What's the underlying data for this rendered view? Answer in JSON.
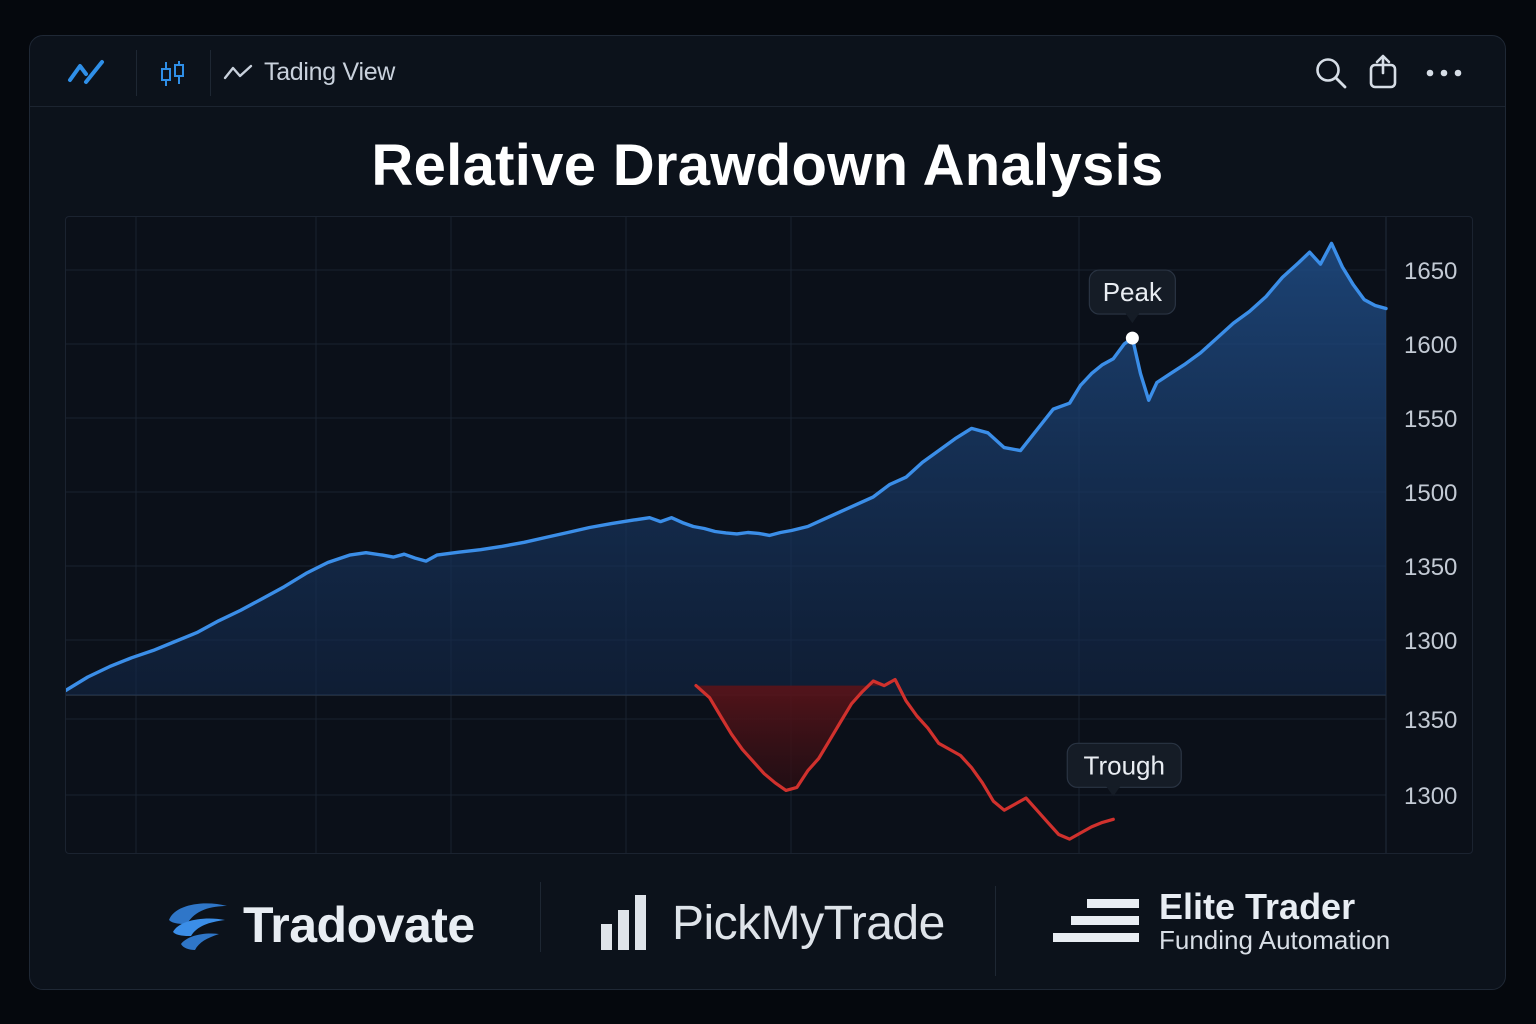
{
  "app": {
    "title": "Tading View"
  },
  "chart_data": {
    "type": "line",
    "title": "Relative Drawdown Analysis",
    "upper_panel": {
      "yticks": [
        1650,
        1600,
        1550,
        1500,
        1350,
        1300
      ],
      "series": [
        {
          "color": "#3b8ee8",
          "points": [
            [
              0,
              1266
            ],
            [
              8,
              1275
            ],
            [
              16,
              1282
            ],
            [
              24,
              1288
            ],
            [
              32,
              1293
            ],
            [
              40,
              1299
            ],
            [
              48,
              1305
            ],
            [
              56,
              1313
            ],
            [
              64,
              1320
            ],
            [
              72,
              1328
            ],
            [
              80,
              1336
            ],
            [
              88,
              1345
            ],
            [
              96,
              1357
            ],
            [
              104,
              1372
            ],
            [
              110,
              1377
            ],
            [
              116,
              1372
            ],
            [
              120,
              1368
            ],
            [
              124,
              1374
            ],
            [
              128,
              1366
            ],
            [
              132,
              1360
            ],
            [
              136,
              1372
            ],
            [
              144,
              1378
            ],
            [
              152,
              1383
            ],
            [
              160,
              1390
            ],
            [
              168,
              1398
            ],
            [
              176,
              1408
            ],
            [
              184,
              1418
            ],
            [
              192,
              1428
            ],
            [
              200,
              1436
            ],
            [
              208,
              1443
            ],
            [
              214,
              1448
            ],
            [
              218,
              1440
            ],
            [
              222,
              1448
            ],
            [
              226,
              1438
            ],
            [
              230,
              1430
            ],
            [
              234,
              1426
            ],
            [
              238,
              1420
            ],
            [
              242,
              1417
            ],
            [
              246,
              1415
            ],
            [
              250,
              1418
            ],
            [
              254,
              1416
            ],
            [
              258,
              1412
            ],
            [
              262,
              1418
            ],
            [
              266,
              1422
            ],
            [
              272,
              1430
            ],
            [
              278,
              1445
            ],
            [
              284,
              1460
            ],
            [
              290,
              1475
            ],
            [
              296,
              1490
            ],
            [
              302,
              1505
            ],
            [
              308,
              1510
            ],
            [
              314,
              1520
            ],
            [
              320,
              1528
            ],
            [
              326,
              1536
            ],
            [
              332,
              1543
            ],
            [
              338,
              1540
            ],
            [
              344,
              1530
            ],
            [
              350,
              1528
            ],
            [
              356,
              1542
            ],
            [
              362,
              1556
            ],
            [
              368,
              1560
            ],
            [
              372,
              1572
            ],
            [
              376,
              1580
            ],
            [
              380,
              1586
            ],
            [
              384,
              1590
            ],
            [
              388,
              1600
            ],
            [
              391,
              1604
            ],
            [
              394,
              1580
            ],
            [
              397,
              1562
            ],
            [
              400,
              1574
            ],
            [
              405,
              1580
            ],
            [
              410,
              1586
            ],
            [
              416,
              1594
            ],
            [
              422,
              1604
            ],
            [
              428,
              1614
            ],
            [
              434,
              1622
            ],
            [
              440,
              1632
            ],
            [
              446,
              1645
            ],
            [
              452,
              1655
            ],
            [
              456,
              1662
            ],
            [
              460,
              1654
            ],
            [
              464,
              1668
            ],
            [
              468,
              1652
            ],
            [
              472,
              1640
            ],
            [
              476,
              1630
            ],
            [
              480,
              1626
            ],
            [
              484,
              1624
            ]
          ]
        }
      ]
    },
    "lower_panel": {
      "yticks": [
        1350,
        1300
      ],
      "series": [
        {
          "color": "#d0312d",
          "points": [
            [
              231,
              1372
            ],
            [
              236,
              1364
            ],
            [
              240,
              1352
            ],
            [
              244,
              1340
            ],
            [
              248,
              1330
            ],
            [
              252,
              1322
            ],
            [
              256,
              1314
            ],
            [
              260,
              1308
            ],
            [
              264,
              1303
            ],
            [
              268,
              1305
            ],
            [
              272,
              1316
            ],
            [
              276,
              1324
            ],
            [
              280,
              1336
            ],
            [
              284,
              1348
            ],
            [
              288,
              1360
            ],
            [
              292,
              1368
            ],
            [
              296,
              1375
            ],
            [
              300,
              1372
            ],
            [
              304,
              1376
            ],
            [
              308,
              1362
            ],
            [
              312,
              1352
            ],
            [
              316,
              1344
            ],
            [
              320,
              1334
            ],
            [
              324,
              1330
            ],
            [
              328,
              1326
            ],
            [
              332,
              1318
            ],
            [
              336,
              1308
            ],
            [
              340,
              1296
            ],
            [
              344,
              1290
            ],
            [
              348,
              1294
            ],
            [
              352,
              1298
            ],
            [
              356,
              1290
            ],
            [
              360,
              1282
            ],
            [
              364,
              1274
            ],
            [
              368,
              1271
            ],
            [
              372,
              1275
            ],
            [
              376,
              1279
            ],
            [
              380,
              1282
            ],
            [
              384,
              1284
            ]
          ]
        }
      ]
    },
    "annotations": [
      {
        "label": "Peak",
        "x": 391,
        "y": 1604,
        "panel": "upper"
      },
      {
        "label": "Trough",
        "x": 384,
        "y": 1284,
        "panel": "lower"
      }
    ]
  },
  "footer": {
    "brands": [
      {
        "name": "Tradovate"
      },
      {
        "name": "PickMyTrade"
      },
      {
        "name": "Elite Trader",
        "subtitle": "Funding Automation"
      }
    ]
  },
  "icons": [
    "app-logo-icon",
    "candlestick-icon",
    "line-chart-icon",
    "search-icon",
    "share-icon",
    "more-icon"
  ]
}
